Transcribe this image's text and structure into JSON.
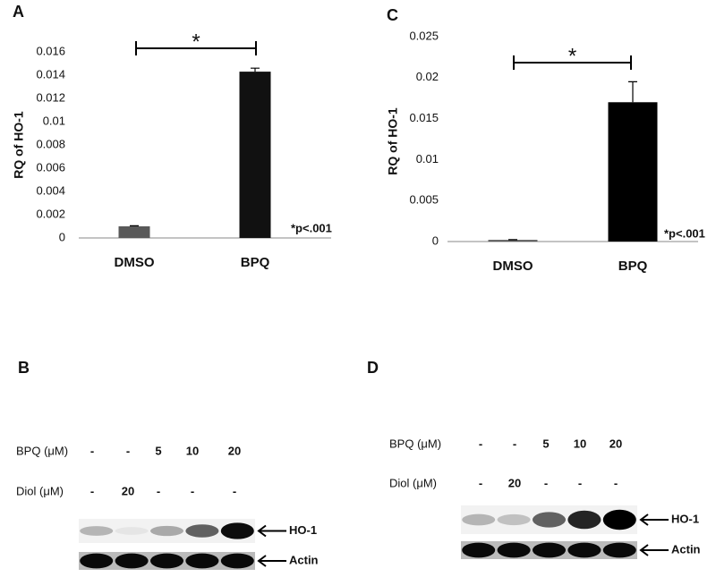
{
  "chart_data": [
    {
      "type": "bar",
      "panel": "A",
      "ylabel": "RQ of HO-1",
      "categories": [
        "DMSO",
        "BPQ"
      ],
      "values": [
        0.001,
        0.0143
      ],
      "errors": [
        5e-05,
        0.0003
      ],
      "colors": [
        "#595959",
        "#111111"
      ],
      "ylim": [
        0,
        0.016
      ],
      "yticks": [
        0,
        0.002,
        0.004,
        0.006,
        0.008,
        0.01,
        0.012,
        0.014,
        0.016
      ],
      "annotations": [
        "*",
        "*p<.001"
      ]
    },
    {
      "type": "bar",
      "panel": "C",
      "ylabel": "RQ of HO-1",
      "categories": [
        "DMSO",
        "BPQ"
      ],
      "values": [
        0.0002,
        0.017
      ],
      "errors": [
        3e-05,
        0.0025
      ],
      "colors": [
        "#595959",
        "#000000"
      ],
      "ylim": [
        0,
        0.025
      ],
      "yticks": [
        0,
        0.005,
        0.01,
        0.015,
        0.02,
        0.025
      ],
      "annotations": [
        "*",
        "*p<.001"
      ]
    }
  ],
  "blots": [
    {
      "panel": "B",
      "rows": [
        {
          "label": "BPQ (μM)",
          "lanes": [
            "-",
            "-",
            "5",
            "10",
            "20"
          ]
        },
        {
          "label": "Diol (μM)",
          "lanes": [
            "-",
            "20",
            "-",
            "-",
            "-"
          ]
        }
      ],
      "bands": [
        "HO-1",
        "Actin"
      ]
    },
    {
      "panel": "D",
      "rows": [
        {
          "label": "BPQ (μM)",
          "lanes": [
            "-",
            "-",
            "5",
            "10",
            "20"
          ]
        },
        {
          "label": "Diol (μM)",
          "lanes": [
            "-",
            "20",
            "-",
            "-",
            "-"
          ]
        }
      ],
      "bands": [
        "HO-1",
        "Actin"
      ]
    }
  ]
}
